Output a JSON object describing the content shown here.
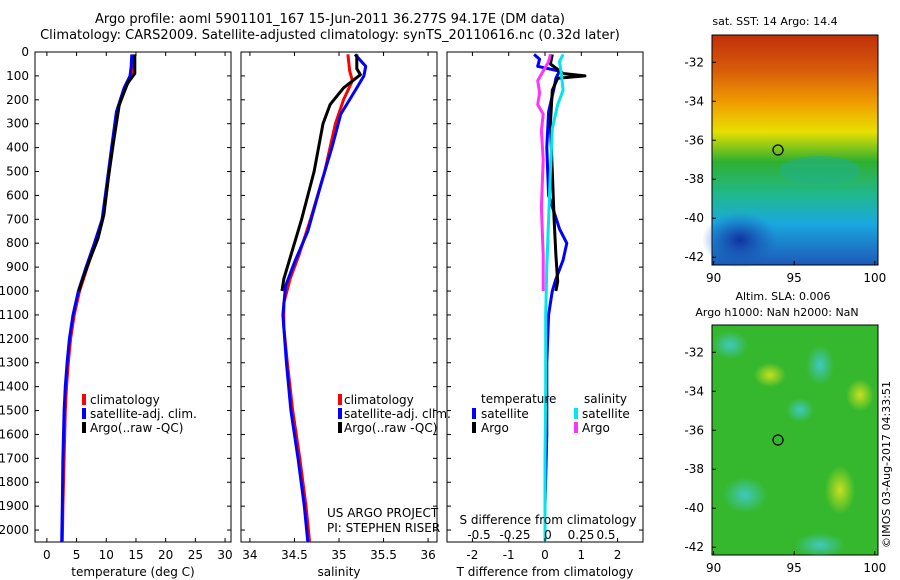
{
  "header": {
    "line1": "Argo profile: aoml 5901101_167 15-Jun-2011 36.277S 94.17E (DM data)",
    "line2": "Climatology: CARS2009. Satellite-adjusted climatology: synTS_20110616.nc (0.32d later)"
  },
  "colors": {
    "climatology": "#ff0000",
    "satellite": "#0000ff",
    "argo": "#000000",
    "s_satellite": "#00e5ee",
    "s_argo": "#ff33ff"
  },
  "depth_axis": {
    "ylim": [
      0,
      2050
    ],
    "ticks": [
      0,
      100,
      200,
      300,
      400,
      500,
      600,
      700,
      800,
      900,
      1000,
      1100,
      1200,
      1300,
      1400,
      1500,
      1600,
      1700,
      1800,
      1900,
      2000
    ]
  },
  "chart_data": [
    {
      "id": "temperature",
      "type": "line",
      "xlabel": "temperature (deg C)",
      "xlim": [
        -2,
        31
      ],
      "xticks": [
        "0",
        "5",
        "10",
        "15",
        "20",
        "25",
        "30"
      ],
      "xtick_values": [
        0,
        5,
        10,
        15,
        20,
        25,
        30
      ],
      "legend": [
        "climatology",
        "satellite-adj. clim.",
        "Argo(..raw -QC)"
      ],
      "series": [
        {
          "name": "climatology",
          "color": "#ff0000",
          "points": [
            [
              14.6,
              10
            ],
            [
              14.5,
              60
            ],
            [
              14.3,
              100
            ],
            [
              13.2,
              150
            ],
            [
              11.8,
              250
            ],
            [
              11.0,
              400
            ],
            [
              10.2,
              550
            ],
            [
              9.4,
              700
            ],
            [
              8.2,
              800
            ],
            [
              6.8,
              900
            ],
            [
              5.5,
              1000
            ],
            [
              4.6,
              1100
            ],
            [
              4.0,
              1200
            ],
            [
              3.6,
              1300
            ],
            [
              3.3,
              1400
            ],
            [
              3.1,
              1500
            ],
            [
              2.9,
              1700
            ],
            [
              2.7,
              1900
            ],
            [
              2.6,
              2050
            ]
          ]
        },
        {
          "name": "satellite-adj. clim.",
          "color": "#0000ff",
          "points": [
            [
              14.3,
              10
            ],
            [
              14.2,
              60
            ],
            [
              14.0,
              100
            ],
            [
              13.0,
              150
            ],
            [
              11.7,
              250
            ],
            [
              10.9,
              400
            ],
            [
              10.1,
              550
            ],
            [
              9.3,
              700
            ],
            [
              8.0,
              800
            ],
            [
              6.6,
              900
            ],
            [
              5.3,
              1000
            ],
            [
              4.4,
              1100
            ],
            [
              3.8,
              1200
            ],
            [
              3.4,
              1300
            ],
            [
              3.1,
              1400
            ],
            [
              2.9,
              1500
            ],
            [
              2.7,
              1700
            ],
            [
              2.6,
              1900
            ],
            [
              2.5,
              2050
            ]
          ]
        },
        {
          "name": "Argo(..raw -QC)",
          "color": "#000000",
          "points": [
            [
              14.8,
              10
            ],
            [
              14.8,
              90
            ],
            [
              13.6,
              130
            ],
            [
              12.2,
              220
            ],
            [
              11.2,
              380
            ],
            [
              10.4,
              520
            ],
            [
              9.6,
              680
            ],
            [
              8.6,
              780
            ],
            [
              7.2,
              870
            ],
            [
              5.9,
              960
            ],
            [
              5.4,
              1000
            ]
          ]
        }
      ]
    },
    {
      "id": "salinity",
      "type": "line",
      "xlabel": "salinity",
      "xlim": [
        33.9,
        36.1
      ],
      "xticks": [
        "34",
        "34.5",
        "35",
        "35.5",
        "36"
      ],
      "xtick_values": [
        34,
        34.5,
        35,
        35.5,
        36
      ],
      "legend": [
        "climatology",
        "satellite-adj. clim.",
        "Argo(..raw -QC)"
      ],
      "annotation": [
        "US ARGO PROJECT",
        "PI: STEPHEN RISER"
      ],
      "series": [
        {
          "name": "climatology",
          "color": "#ff0000",
          "points": [
            [
              35.1,
              10
            ],
            [
              35.12,
              80
            ],
            [
              35.15,
              120
            ],
            [
              35.05,
              200
            ],
            [
              34.96,
              300
            ],
            [
              34.84,
              500
            ],
            [
              34.68,
              700
            ],
            [
              34.55,
              850
            ],
            [
              34.45,
              950
            ],
            [
              34.38,
              1050
            ],
            [
              34.38,
              1150
            ],
            [
              34.42,
              1300
            ],
            [
              34.48,
              1500
            ],
            [
              34.56,
              1700
            ],
            [
              34.63,
              1900
            ],
            [
              34.67,
              2050
            ]
          ]
        },
        {
          "name": "satellite-adj. clim.",
          "color": "#0000ff",
          "points": [
            [
              35.18,
              10
            ],
            [
              35.3,
              60
            ],
            [
              35.28,
              100
            ],
            [
              35.2,
              150
            ],
            [
              35.02,
              260
            ],
            [
              34.92,
              400
            ],
            [
              34.8,
              550
            ],
            [
              34.65,
              750
            ],
            [
              34.5,
              880
            ],
            [
              34.4,
              980
            ],
            [
              34.37,
              1100
            ],
            [
              34.41,
              1300
            ],
            [
              34.46,
              1500
            ],
            [
              34.54,
              1700
            ],
            [
              34.61,
              1900
            ],
            [
              34.65,
              2050
            ]
          ]
        },
        {
          "name": "Argo(..raw -QC)",
          "color": "#000000",
          "points": [
            [
              35.2,
              10
            ],
            [
              35.2,
              70
            ],
            [
              35.24,
              95
            ],
            [
              35.05,
              150
            ],
            [
              34.9,
              220
            ],
            [
              34.82,
              300
            ],
            [
              34.72,
              500
            ],
            [
              34.58,
              700
            ],
            [
              34.46,
              850
            ],
            [
              34.38,
              950
            ],
            [
              34.36,
              1000
            ]
          ]
        }
      ]
    },
    {
      "id": "difference",
      "type": "line",
      "xlabel": "T difference from climatology",
      "xlabel2": "S difference from climatology",
      "xlim": [
        -2.7,
        2.7
      ],
      "xticks": [
        "-2",
        "-1",
        "0",
        "1",
        "2"
      ],
      "xtick_values": [
        -2,
        -1,
        0,
        1,
        2
      ],
      "xticks_top": [
        "-0.5",
        "-0.25",
        "0",
        "0.25",
        "0.5"
      ],
      "legend_headers": [
        "temperature",
        "salinity"
      ],
      "legend": [
        "satellite",
        "Argo",
        "satellite",
        "Argo"
      ],
      "series": [
        {
          "name": "T satellite",
          "color": "#0000ff",
          "points": [
            [
              -0.3,
              10
            ],
            [
              -0.15,
              30
            ],
            [
              -0.2,
              60
            ],
            [
              0.4,
              80
            ],
            [
              0.3,
              110
            ],
            [
              0.25,
              150
            ],
            [
              0.1,
              250
            ],
            [
              0.05,
              400
            ],
            [
              0.1,
              600
            ],
            [
              0.4,
              740
            ],
            [
              0.6,
              800
            ],
            [
              0.5,
              870
            ],
            [
              0.3,
              950
            ],
            [
              0.2,
              1000
            ],
            [
              0.1,
              1100
            ],
            [
              0.05,
              1300
            ],
            [
              0.05,
              1600
            ],
            [
              0.0,
              1900
            ],
            [
              0.0,
              2050
            ]
          ]
        },
        {
          "name": "T Argo",
          "color": "#000000",
          "points": [
            [
              0.2,
              10
            ],
            [
              0.15,
              50
            ],
            [
              0.5,
              90
            ],
            [
              1.1,
              100
            ],
            [
              0.35,
              110
            ],
            [
              0.2,
              160
            ],
            [
              0.15,
              300
            ],
            [
              0.2,
              500
            ],
            [
              0.25,
              700
            ],
            [
              0.3,
              850
            ],
            [
              0.35,
              960
            ],
            [
              0.3,
              1000
            ]
          ]
        },
        {
          "name": "S satellite",
          "color": "#00e5ee",
          "points": [
            [
              0.5,
              10
            ],
            [
              0.4,
              40
            ],
            [
              0.45,
              90
            ],
            [
              0.5,
              160
            ],
            [
              0.35,
              220
            ],
            [
              0.2,
              320
            ],
            [
              0.15,
              500
            ],
            [
              0.1,
              700
            ],
            [
              0.05,
              900
            ],
            [
              0.02,
              1100
            ],
            [
              0.02,
              1400
            ],
            [
              0.0,
              1700
            ],
            [
              0.0,
              2050
            ]
          ]
        },
        {
          "name": "S Argo",
          "color": "#ff33ff",
          "points": [
            [
              0.15,
              10
            ],
            [
              0.1,
              40
            ],
            [
              -0.05,
              80
            ],
            [
              -0.2,
              120
            ],
            [
              -0.15,
              170
            ],
            [
              -0.2,
              220
            ],
            [
              -0.05,
              260
            ],
            [
              -0.1,
              330
            ],
            [
              -0.05,
              450
            ],
            [
              -0.1,
              650
            ],
            [
              -0.05,
              850
            ],
            [
              -0.05,
              1000
            ]
          ]
        }
      ]
    },
    {
      "id": "sst_map",
      "type": "heatmap",
      "title": "sat. SST: 14 Argo: 14.4",
      "xticks": [
        "90",
        "95",
        "100"
      ],
      "yticks": [
        "-32",
        "-34",
        "-36",
        "-38",
        "-40",
        "-42"
      ],
      "xlim": [
        89.9,
        100.2
      ],
      "ylim": [
        -42.4,
        -30.6
      ],
      "marker": {
        "lon": 94.17,
        "lat": -36.28
      }
    },
    {
      "id": "sla_map",
      "type": "heatmap",
      "title": "Altim. SLA: 0.006",
      "subtitle": "Argo h1000: NaN h2000: NaN",
      "xticks": [
        "90",
        "95",
        "100"
      ],
      "yticks": [
        "-32",
        "-34",
        "-36",
        "-38",
        "-40",
        "-42"
      ],
      "xlim": [
        89.9,
        100.2
      ],
      "ylim": [
        -42.4,
        -30.6
      ],
      "marker": {
        "lon": 94.17,
        "lat": -36.28
      }
    }
  ],
  "side_credit": "©IMOS 03-Aug-2017 04:33:51"
}
